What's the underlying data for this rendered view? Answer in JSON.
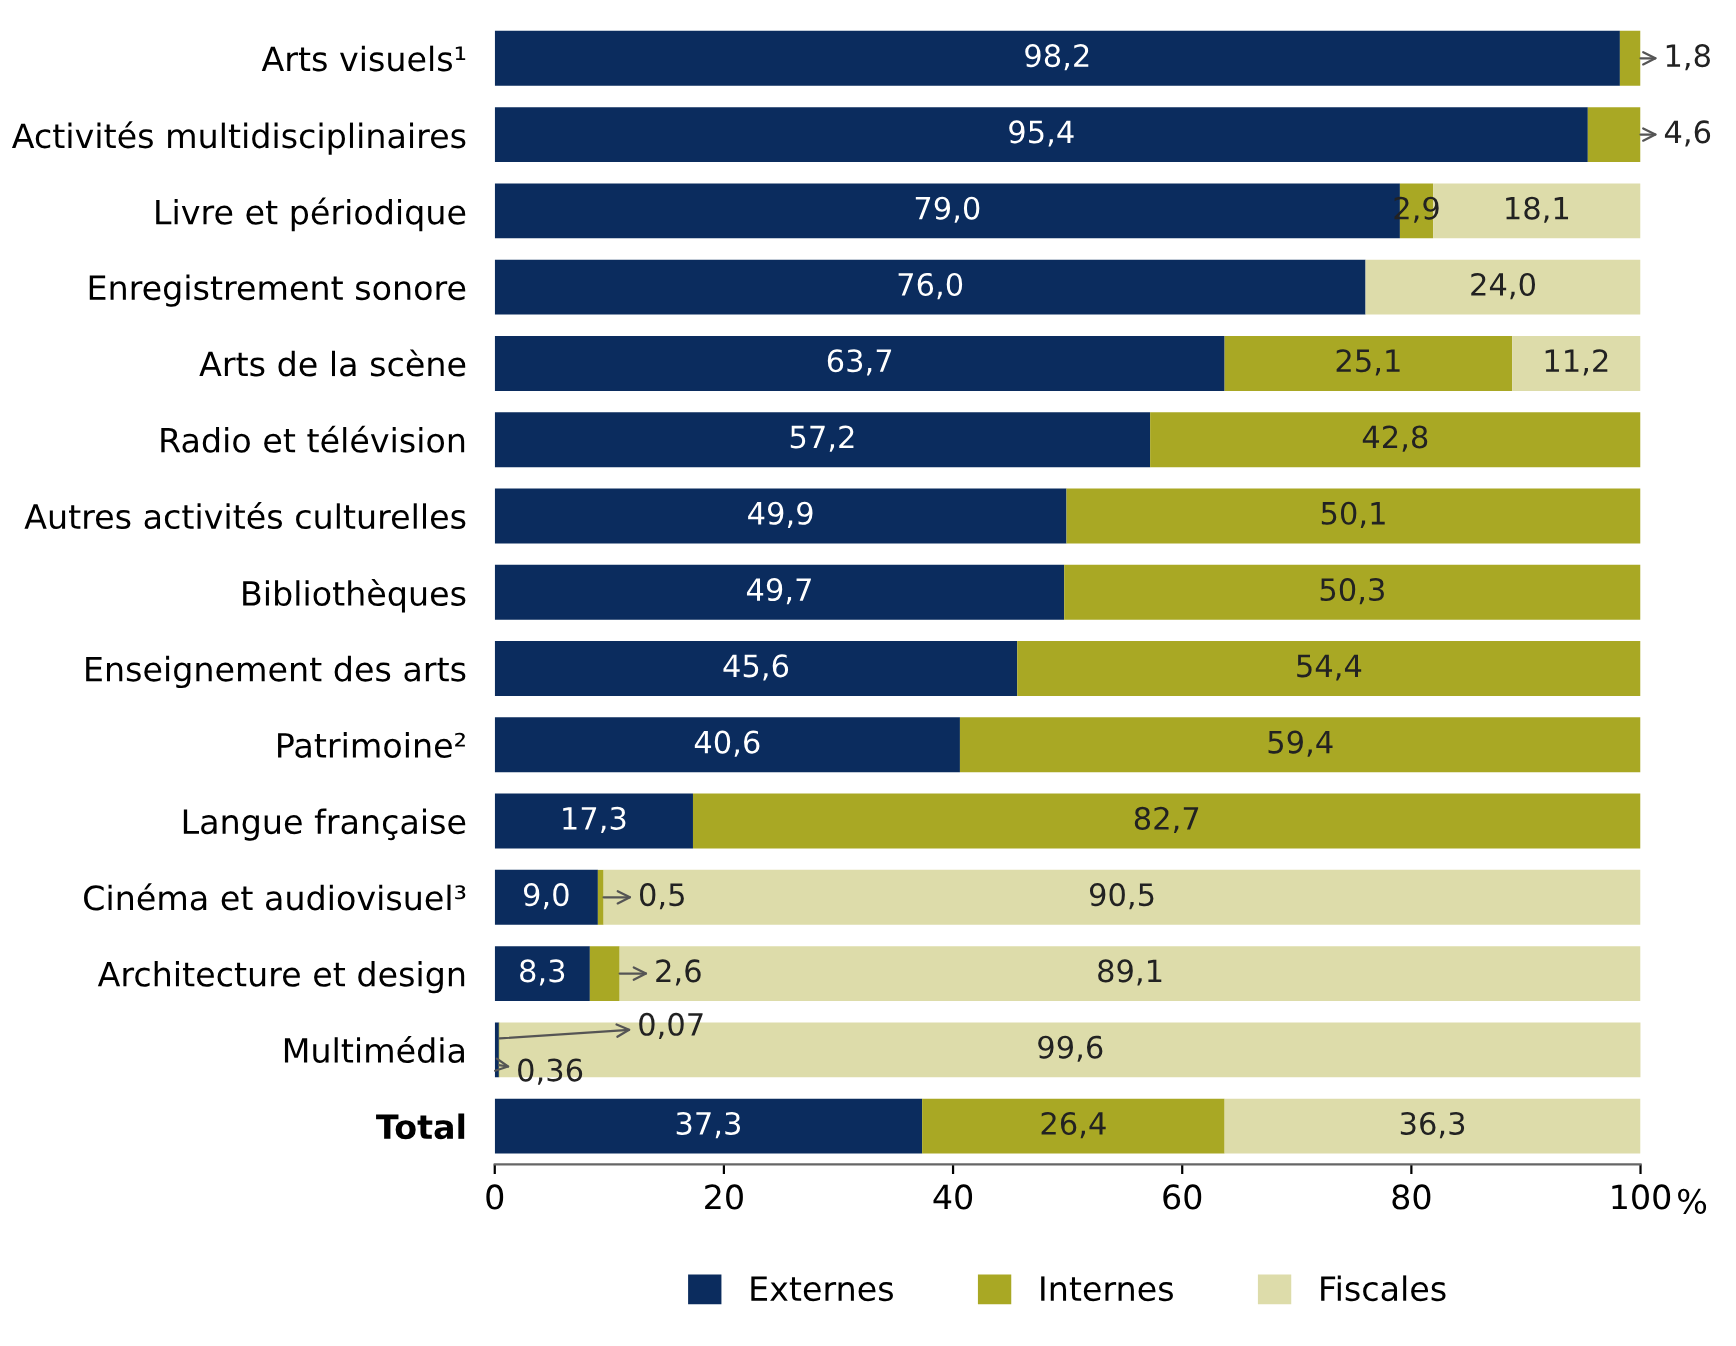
{
  "chart_data": {
    "type": "bar",
    "orientation": "horizontal",
    "stacked": true,
    "xlabel": "%",
    "legend": "bottom",
    "grid": false,
    "categories": [
      "Arts visuels¹",
      "Activités multidisciplinaires",
      "Livre et périodique",
      "Enregistrement sonore",
      "Arts de la scène",
      "Radio et télévision",
      "Autres activités culturelles",
      "Bibliothèques",
      "Enseignement des arts",
      "Patrimoine²",
      "Langue française",
      "Cinéma et audiovisuel³",
      "Architecture et design",
      "Multimédia",
      "Total"
    ],
    "xlim": [
      0,
      100
    ],
    "xticks": [
      0,
      20,
      40,
      60,
      80,
      100
    ],
    "series": [
      {
        "name": "Externes",
        "color": "#0b2c5e",
        "values": [
          98.2,
          95.4,
          79.0,
          76.0,
          63.7,
          57.2,
          49.9,
          49.7,
          45.6,
          40.6,
          17.3,
          9.0,
          8.3,
          0.36,
          37.3
        ],
        "value_labels": [
          "98,2",
          "95,4",
          "79,0",
          "76,0",
          "63,7",
          "57,2",
          "49,9",
          "49,7",
          "45,6",
          "40,6",
          "17,3",
          "9,0",
          "8,3",
          "0,36",
          "37,3"
        ]
      },
      {
        "name": "Internes",
        "color": "#a9a824",
        "values": [
          1.8,
          4.6,
          2.9,
          null,
          25.1,
          42.8,
          50.1,
          50.3,
          54.4,
          59.4,
          82.7,
          0.5,
          2.6,
          0.07,
          26.4
        ],
        "value_labels": [
          "1,8",
          "4,6",
          "2,9",
          null,
          "25,1",
          "42,8",
          "50,1",
          "50,3",
          "54,4",
          "59,4",
          "82,7",
          "0,5",
          "2,6",
          "0,07",
          "26,4"
        ]
      },
      {
        "name": "Fiscales",
        "color": "#dddcaa",
        "values": [
          null,
          null,
          18.1,
          24.0,
          11.2,
          null,
          null,
          null,
          null,
          null,
          null,
          90.5,
          89.1,
          99.6,
          36.3
        ],
        "value_labels": [
          null,
          null,
          "18,1",
          "24,0",
          "11,2",
          null,
          null,
          null,
          null,
          null,
          null,
          "90,5",
          "89,1",
          "99,6",
          "36,3"
        ]
      }
    ]
  }
}
